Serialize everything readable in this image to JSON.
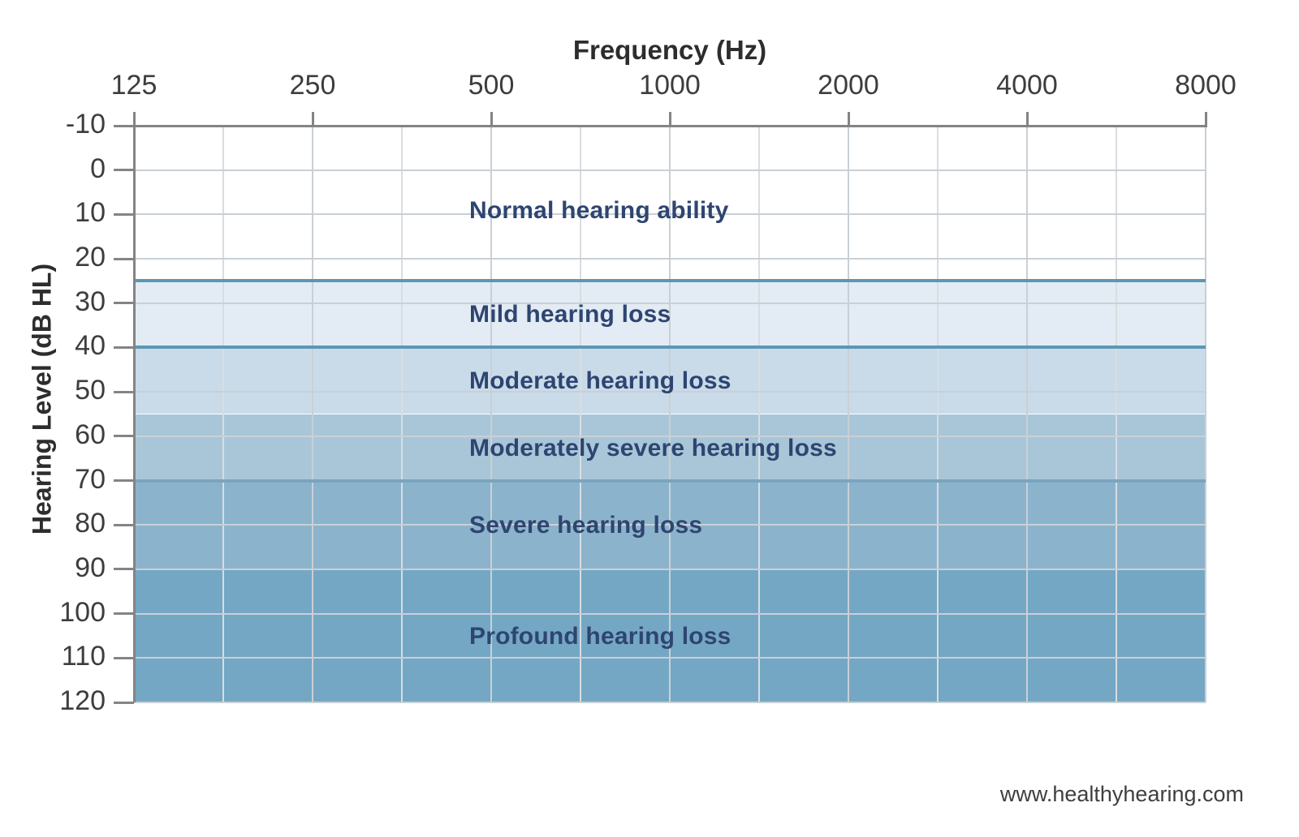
{
  "chart_data": {
    "type": "area",
    "title": "Frequency (Hz)",
    "xlabel": "Frequency (Hz)",
    "ylabel": "Hearing Level (dB HL)",
    "x_tick_labels": [
      "125",
      "250",
      "500",
      "1000",
      "2000",
      "4000",
      "8000"
    ],
    "y_tick_labels": [
      "-10",
      "0",
      "10",
      "20",
      "30",
      "40",
      "50",
      "60",
      "70",
      "80",
      "90",
      "100",
      "110",
      "120"
    ],
    "y_range": [
      -10,
      120
    ],
    "y_tick_step": 10,
    "x_scale": "log-octave",
    "grid": true,
    "legend_position": "none",
    "bands": [
      {
        "label": "Normal hearing ability",
        "from_db": -10,
        "to_db": 25,
        "color": "#ffffff",
        "top_line_color": null
      },
      {
        "label": "Mild hearing loss",
        "from_db": 25,
        "to_db": 40,
        "color": "#e3ecf4",
        "top_line_color": "#5d96b5"
      },
      {
        "label": "Moderate hearing loss",
        "from_db": 40,
        "to_db": 55,
        "color": "#c9dbe9",
        "top_line_color": "#5d96b5"
      },
      {
        "label": "Moderately severe hearing loss",
        "from_db": 55,
        "to_db": 70,
        "color": "#a9c6d9",
        "top_line_color": null
      },
      {
        "label": "Severe hearing loss",
        "from_db": 70,
        "to_db": 90,
        "color": "#8cb3cc",
        "top_line_color": "#7ba4bd"
      },
      {
        "label": "Profound hearing loss",
        "from_db": 90,
        "to_db": 120,
        "color": "#74a7c4",
        "top_line_color": null
      }
    ],
    "colors": {
      "band_label": "#2e4571",
      "axis": "#848484",
      "grid": "#c9d0d5",
      "grid_minor": "#d8dde0",
      "tick_text": "#3d3d3d",
      "title_text": "#2d2d2d"
    }
  },
  "footer": {
    "website": "www.healthyhearing.com"
  }
}
